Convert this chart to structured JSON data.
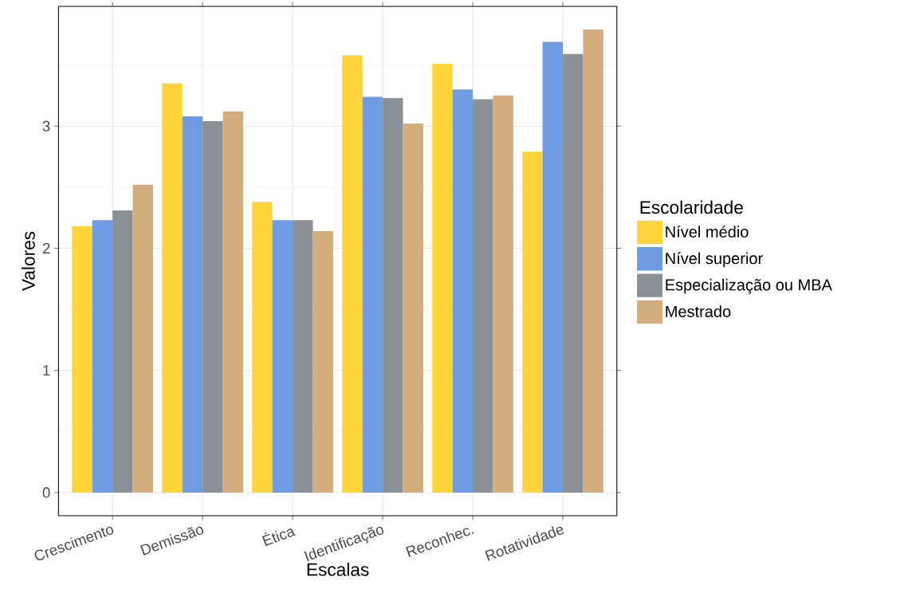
{
  "chart_data": {
    "type": "bar",
    "xlabel": "Escalas",
    "ylabel": "Valores",
    "legend_title": "Escolaridade",
    "categories": [
      "Crescimento",
      "Demissão",
      "Ética",
      "Identificação",
      "Reconhec.",
      "Rotatividade"
    ],
    "series": [
      {
        "name": "Nível médio",
        "color": "#ffd43b",
        "values": [
          2.18,
          3.35,
          2.38,
          3.58,
          3.51,
          2.79
        ]
      },
      {
        "name": "Nível superior",
        "color": "#6f9be3",
        "values": [
          2.23,
          3.08,
          2.23,
          3.24,
          3.3,
          3.69
        ]
      },
      {
        "name": "Especialização ou MBA",
        "color": "#8a9096",
        "values": [
          2.31,
          3.04,
          2.23,
          3.23,
          3.22,
          3.59
        ]
      },
      {
        "name": "Mestrado",
        "color": "#d2ae7e",
        "values": [
          2.52,
          3.12,
          2.14,
          3.02,
          3.25,
          3.79
        ]
      }
    ],
    "ylim": [
      -0.19,
      3.98
    ],
    "yticks": [
      0,
      1,
      2,
      3
    ],
    "grid": true,
    "legend": "right"
  }
}
